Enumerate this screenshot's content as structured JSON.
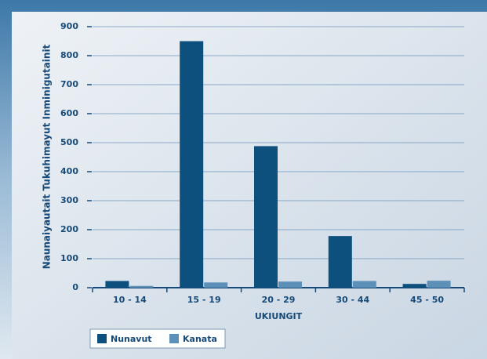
{
  "chart_data": {
    "type": "bar",
    "categories": [
      "10 - 14",
      "15 - 19",
      "20 - 29",
      "30 - 44",
      "45 - 50"
    ],
    "series": [
      {
        "name": "Nunavut",
        "color": "#0d4f7d",
        "values": [
          23,
          850,
          488,
          178,
          13
        ]
      },
      {
        "name": "Kanata",
        "color": "#5c90b8",
        "values": [
          6,
          18,
          21,
          23,
          24
        ]
      }
    ],
    "x_label": "UKIUNGIT",
    "y_label": "Naunaiyautait Tukuhimayut Inminigutainit",
    "ylim": [
      0,
      900
    ],
    "yticks": [
      0,
      100,
      200,
      300,
      400,
      500,
      600,
      700,
      800,
      900
    ],
    "grid": true,
    "legend": "bottom-left"
  }
}
